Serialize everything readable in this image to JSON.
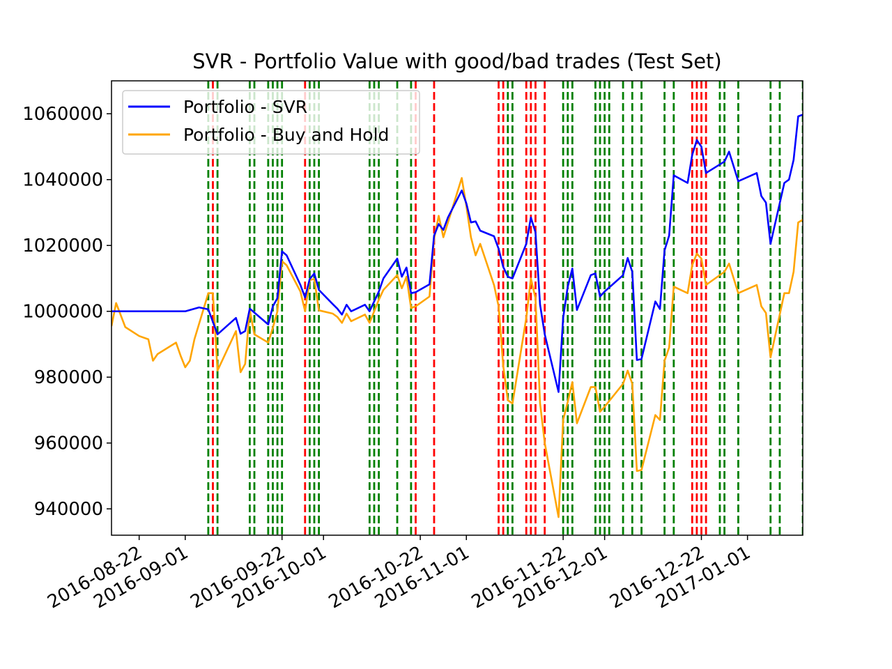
{
  "chart_data": {
    "type": "line",
    "title": "SVR - Portfolio Value with good/bad trades (Test Set)",
    "xlabel": "",
    "ylabel": "",
    "x_axis_type": "date",
    "xlim": [
      "2016-08-16",
      "2017-01-13"
    ],
    "ylim": [
      932000,
      1070000
    ],
    "x_ticks": [
      "2016-08-22",
      "2016-09-01",
      "2016-09-22",
      "2016-10-01",
      "2016-10-22",
      "2016-11-01",
      "2016-11-22",
      "2016-12-01",
      "2016-12-22",
      "2017-01-01"
    ],
    "y_ticks": [
      940000,
      960000,
      980000,
      1000000,
      1020000,
      1040000,
      1060000
    ],
    "y_tick_labels": [
      "940000",
      "960000",
      "980000",
      "1000000",
      "1020000",
      "1040000",
      "1060000"
    ],
    "legend": {
      "placement": "upper-left"
    },
    "series": [
      {
        "name": "Portfolio - SVR",
        "color": "#0000ff",
        "points": [
          [
            "2016-08-16",
            1000000
          ],
          [
            "2016-09-01",
            1000000
          ],
          [
            "2016-09-04",
            1001200
          ],
          [
            "2016-09-06",
            1000600
          ],
          [
            "2016-09-08",
            993000
          ],
          [
            "2016-09-12",
            998000
          ],
          [
            "2016-09-13",
            993200
          ],
          [
            "2016-09-14",
            994000
          ],
          [
            "2016-09-15",
            1000800
          ],
          [
            "2016-09-19",
            996000
          ],
          [
            "2016-09-20",
            1001500
          ],
          [
            "2016-09-21",
            1004000
          ],
          [
            "2016-09-22",
            1018200
          ],
          [
            "2016-09-23",
            1017000
          ],
          [
            "2016-09-26",
            1008000
          ],
          [
            "2016-09-27",
            1004200
          ],
          [
            "2016-09-28",
            1009800
          ],
          [
            "2016-09-29",
            1011500
          ],
          [
            "2016-09-30",
            1006500
          ],
          [
            "2016-10-03",
            1002200
          ],
          [
            "2016-10-04",
            1000800
          ],
          [
            "2016-10-05",
            999000
          ],
          [
            "2016-10-06",
            1002000
          ],
          [
            "2016-10-07",
            1000000
          ],
          [
            "2016-10-10",
            1002000
          ],
          [
            "2016-10-11",
            1000000
          ],
          [
            "2016-10-13",
            1006000
          ],
          [
            "2016-10-14",
            1010000
          ],
          [
            "2016-10-17",
            1016000
          ],
          [
            "2016-10-18",
            1010500
          ],
          [
            "2016-10-19",
            1013300
          ],
          [
            "2016-10-20",
            1005500
          ],
          [
            "2016-10-21",
            1005800
          ],
          [
            "2016-10-24",
            1008200
          ],
          [
            "2016-10-25",
            1023000
          ],
          [
            "2016-10-26",
            1026500
          ],
          [
            "2016-10-27",
            1024700
          ],
          [
            "2016-10-28",
            1028500
          ],
          [
            "2016-10-31",
            1036700
          ],
          [
            "2016-11-01",
            1032800
          ],
          [
            "2016-11-02",
            1027000
          ],
          [
            "2016-11-03",
            1027300
          ],
          [
            "2016-11-04",
            1024500
          ],
          [
            "2016-11-07",
            1022800
          ],
          [
            "2016-11-08",
            1019000
          ],
          [
            "2016-11-09",
            1013500
          ],
          [
            "2016-11-10",
            1010500
          ],
          [
            "2016-11-11",
            1010000
          ],
          [
            "2016-11-14",
            1020500
          ],
          [
            "2016-11-15",
            1028500
          ],
          [
            "2016-11-16",
            1024000
          ],
          [
            "2016-11-17",
            1002000
          ],
          [
            "2016-11-18",
            993000
          ],
          [
            "2016-11-21",
            975500
          ],
          [
            "2016-11-22",
            998000
          ],
          [
            "2016-11-23",
            1007500
          ],
          [
            "2016-11-24",
            1013000
          ],
          [
            "2016-11-25",
            1000400
          ],
          [
            "2016-11-28",
            1011000
          ],
          [
            "2016-11-29",
            1011500
          ],
          [
            "2016-11-30",
            1004500
          ],
          [
            "2016-12-01",
            1006000
          ],
          [
            "2016-12-05",
            1011000
          ],
          [
            "2016-12-06",
            1016200
          ],
          [
            "2016-12-07",
            1012000
          ],
          [
            "2016-12-08",
            985200
          ],
          [
            "2016-12-09",
            985500
          ],
          [
            "2016-12-12",
            1003000
          ],
          [
            "2016-12-13",
            1000700
          ],
          [
            "2016-12-14",
            1018500
          ],
          [
            "2016-12-15",
            1023000
          ],
          [
            "2016-12-16",
            1041300
          ],
          [
            "2016-12-19",
            1039000
          ],
          [
            "2016-12-20",
            1047500
          ],
          [
            "2016-12-21",
            1052000
          ],
          [
            "2016-12-22",
            1050000
          ],
          [
            "2016-12-23",
            1042000
          ],
          [
            "2016-12-27",
            1045500
          ],
          [
            "2016-12-28",
            1048500
          ],
          [
            "2016-12-29",
            1044000
          ],
          [
            "2016-12-30",
            1039500
          ],
          [
            "2017-01-03",
            1042000
          ],
          [
            "2017-01-04",
            1035000
          ],
          [
            "2017-01-05",
            1033000
          ],
          [
            "2017-01-06",
            1020500
          ],
          [
            "2017-01-09",
            1039000
          ],
          [
            "2017-01-10",
            1040000
          ],
          [
            "2017-01-11",
            1046000
          ],
          [
            "2017-01-12",
            1059200
          ],
          [
            "2017-01-15",
            1060800
          ],
          [
            "2017-01-16",
            1060000
          ],
          [
            "2017-01-17",
            1063500
          ]
        ]
      },
      {
        "name": "Portfolio - Buy and Hold",
        "color": "#ffa500",
        "points": [
          [
            "2016-08-16",
            995500
          ],
          [
            "2016-08-17",
            1002500
          ],
          [
            "2016-08-19",
            995200
          ],
          [
            "2016-08-22",
            992500
          ],
          [
            "2016-08-24",
            991500
          ],
          [
            "2016-08-25",
            985000
          ],
          [
            "2016-08-26",
            987000
          ],
          [
            "2016-08-30",
            990500
          ],
          [
            "2016-08-31",
            986500
          ],
          [
            "2016-09-01",
            983000
          ],
          [
            "2016-09-02",
            985000
          ],
          [
            "2016-09-03",
            991500
          ],
          [
            "2016-09-06",
            1005500
          ],
          [
            "2016-09-07",
            1005500
          ],
          [
            "2016-09-08",
            982000
          ],
          [
            "2016-09-12",
            994000
          ],
          [
            "2016-09-13",
            981500
          ],
          [
            "2016-09-14",
            984000
          ],
          [
            "2016-09-15",
            1000500
          ],
          [
            "2016-09-16",
            993000
          ],
          [
            "2016-09-19",
            990500
          ],
          [
            "2016-09-20",
            995000
          ],
          [
            "2016-09-21",
            1000000
          ],
          [
            "2016-09-22",
            1015200
          ],
          [
            "2016-09-23",
            1014000
          ],
          [
            "2016-09-26",
            1006000
          ],
          [
            "2016-09-27",
            1000000
          ],
          [
            "2016-09-28",
            1009500
          ],
          [
            "2016-09-29",
            1009800
          ],
          [
            "2016-09-30",
            1000300
          ],
          [
            "2016-10-03",
            999300
          ],
          [
            "2016-10-04",
            998300
          ],
          [
            "2016-10-05",
            996500
          ],
          [
            "2016-10-06",
            999300
          ],
          [
            "2016-10-07",
            997000
          ],
          [
            "2016-10-10",
            999000
          ],
          [
            "2016-10-11",
            996500
          ],
          [
            "2016-10-13",
            1003500
          ],
          [
            "2016-10-14",
            1006500
          ],
          [
            "2016-10-17",
            1011000
          ],
          [
            "2016-10-18",
            1007000
          ],
          [
            "2016-10-19",
            1010500
          ],
          [
            "2016-10-20",
            1001000
          ],
          [
            "2016-10-21",
            1001500
          ],
          [
            "2016-10-24",
            1004500
          ],
          [
            "2016-10-25",
            1022000
          ],
          [
            "2016-10-26",
            1029000
          ],
          [
            "2016-10-27",
            1022500
          ],
          [
            "2016-10-28",
            1027000
          ],
          [
            "2016-10-31",
            1040500
          ],
          [
            "2016-11-01",
            1032000
          ],
          [
            "2016-11-02",
            1022500
          ],
          [
            "2016-11-03",
            1017000
          ],
          [
            "2016-11-04",
            1020500
          ],
          [
            "2016-11-07",
            1008000
          ],
          [
            "2016-11-08",
            1001500
          ],
          [
            "2016-11-09",
            983500
          ],
          [
            "2016-11-10",
            973000
          ],
          [
            "2016-11-11",
            972000
          ],
          [
            "2016-11-14",
            998000
          ],
          [
            "2016-11-15",
            1010000
          ],
          [
            "2016-11-16",
            1004000
          ],
          [
            "2016-11-17",
            972000
          ],
          [
            "2016-11-18",
            960000
          ],
          [
            "2016-11-21",
            937500
          ],
          [
            "2016-11-22",
            967000
          ],
          [
            "2016-11-23",
            972500
          ],
          [
            "2016-11-24",
            978500
          ],
          [
            "2016-11-25",
            966000
          ],
          [
            "2016-11-28",
            977000
          ],
          [
            "2016-11-29",
            977000
          ],
          [
            "2016-11-30",
            969500
          ],
          [
            "2016-12-01",
            971000
          ],
          [
            "2016-12-05",
            978000
          ],
          [
            "2016-12-06",
            982000
          ],
          [
            "2016-12-07",
            978000
          ],
          [
            "2016-12-08",
            951500
          ],
          [
            "2016-12-09",
            951800
          ],
          [
            "2016-12-12",
            968500
          ],
          [
            "2016-12-13",
            967000
          ],
          [
            "2016-12-14",
            985000
          ],
          [
            "2016-12-15",
            989000
          ],
          [
            "2016-12-16",
            1007500
          ],
          [
            "2016-12-19",
            1005500
          ],
          [
            "2016-12-20",
            1014000
          ],
          [
            "2016-12-21",
            1017500
          ],
          [
            "2016-12-22",
            1016000
          ],
          [
            "2016-12-23",
            1008000
          ],
          [
            "2016-12-27",
            1012000
          ],
          [
            "2016-12-28",
            1014500
          ],
          [
            "2016-12-29",
            1010000
          ],
          [
            "2016-12-30",
            1005500
          ],
          [
            "2017-01-03",
            1008000
          ],
          [
            "2017-01-04",
            1001500
          ],
          [
            "2017-01-05",
            999500
          ],
          [
            "2017-01-06",
            986000
          ],
          [
            "2017-01-09",
            1005500
          ],
          [
            "2017-01-10",
            1005500
          ],
          [
            "2017-01-11",
            1012000
          ],
          [
            "2017-01-12",
            1027000
          ],
          [
            "2017-01-15",
            1029500
          ],
          [
            "2017-01-16",
            1028000
          ],
          [
            "2017-01-17",
            1032500
          ]
        ]
      }
    ],
    "trade_markers": {
      "style": "dashed vertical line",
      "good_color": "#008000",
      "bad_color": "#ff0000",
      "good": [
        "2016-09-06",
        "2016-09-08",
        "2016-09-15",
        "2016-09-16",
        "2016-09-19",
        "2016-09-20",
        "2016-09-21",
        "2016-09-22",
        "2016-09-28",
        "2016-09-29",
        "2016-09-30",
        "2016-10-11",
        "2016-10-12",
        "2016-10-13",
        "2016-10-17",
        "2016-10-20",
        "2016-11-10",
        "2016-11-11",
        "2016-11-22",
        "2016-11-23",
        "2016-11-24",
        "2016-11-29",
        "2016-11-30",
        "2016-12-01",
        "2016-12-02",
        "2016-12-05",
        "2016-12-07",
        "2016-12-09",
        "2016-12-14",
        "2016-12-16",
        "2016-12-26",
        "2016-12-27",
        "2016-12-30",
        "2017-01-06",
        "2017-01-08",
        "2017-01-13",
        "2017-01-14",
        "2017-01-15"
      ],
      "bad": [
        "2016-09-07",
        "2016-09-27",
        "2016-10-21",
        "2016-10-25",
        "2016-11-08",
        "2016-11-09",
        "2016-11-14",
        "2016-11-15",
        "2016-11-16",
        "2016-11-18",
        "2016-12-20",
        "2016-12-21",
        "2016-12-22",
        "2016-12-23"
      ]
    }
  }
}
